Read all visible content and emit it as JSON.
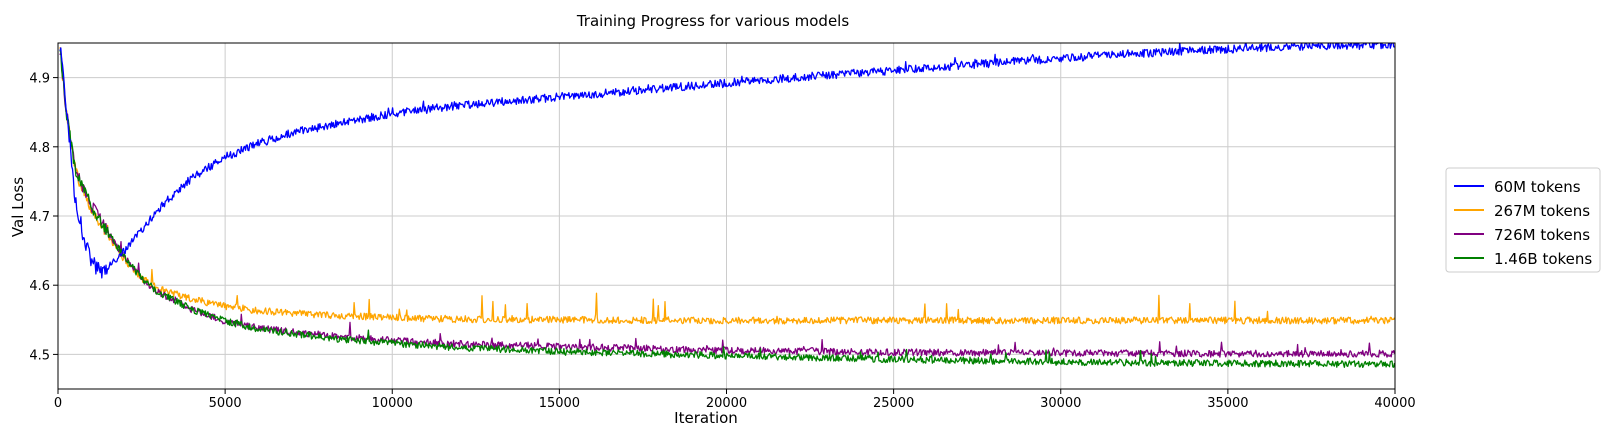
{
  "chart_data": {
    "type": "line",
    "title": "Training Progress for various models",
    "xlabel": "Iteration",
    "ylabel": "Val Loss",
    "xlim": [
      0,
      40000
    ],
    "ylim": [
      4.45,
      4.95
    ],
    "xticks": [
      0,
      5000,
      10000,
      15000,
      20000,
      25000,
      30000,
      35000,
      40000
    ],
    "yticks": [
      4.5,
      4.6,
      4.7,
      4.8,
      4.9
    ],
    "grid": true,
    "legend_position": "right-outside",
    "series": [
      {
        "name": "60M tokens",
        "color": "#0000ff",
        "x": [
          0,
          250,
          500,
          750,
          1000,
          1250,
          1500,
          2000,
          2500,
          3000,
          4000,
          5000,
          6000,
          7000,
          8000,
          10000,
          12000,
          14000,
          16000,
          18000,
          20000,
          22000,
          24000,
          26000,
          28000,
          30000,
          32000,
          34000,
          36000,
          38000,
          40000
        ],
        "y": [
          4.97,
          4.86,
          4.73,
          4.67,
          4.635,
          4.62,
          4.625,
          4.65,
          4.68,
          4.71,
          4.755,
          4.785,
          4.805,
          4.82,
          4.83,
          4.848,
          4.86,
          4.868,
          4.876,
          4.884,
          4.892,
          4.9,
          4.907,
          4.914,
          4.921,
          4.928,
          4.934,
          4.939,
          4.943,
          4.946,
          4.948
        ],
        "noise": 0.006,
        "spike_rate": 0.012,
        "spike_amp": 0.012
      },
      {
        "name": "267M tokens",
        "color": "#ffa500",
        "x": [
          0,
          250,
          500,
          750,
          1000,
          1500,
          2000,
          2500,
          3000,
          4000,
          5000,
          6000,
          8000,
          10000,
          12000,
          15000,
          20000,
          25000,
          30000,
          35000,
          40000
        ],
        "y": [
          4.97,
          4.85,
          4.77,
          4.735,
          4.71,
          4.67,
          4.635,
          4.61,
          4.595,
          4.58,
          4.57,
          4.563,
          4.557,
          4.553,
          4.551,
          4.55,
          4.549,
          4.549,
          4.549,
          4.549,
          4.549
        ],
        "noise": 0.005,
        "spike_rate": 0.025,
        "spike_amp": 0.035
      },
      {
        "name": "726M tokens",
        "color": "#800080",
        "x": [
          0,
          250,
          500,
          750,
          1000,
          1500,
          2000,
          2500,
          3000,
          4000,
          5000,
          6000,
          8000,
          10000,
          12000,
          15000,
          20000,
          25000,
          30000,
          35000,
          40000
        ],
        "y": [
          4.97,
          4.85,
          4.77,
          4.74,
          4.715,
          4.675,
          4.64,
          4.61,
          4.59,
          4.565,
          4.548,
          4.538,
          4.527,
          4.52,
          4.515,
          4.511,
          4.506,
          4.503,
          4.502,
          4.501,
          4.501
        ],
        "noise": 0.005,
        "spike_rate": 0.02,
        "spike_amp": 0.018
      },
      {
        "name": "1.46B tokens",
        "color": "#008000",
        "x": [
          0,
          250,
          500,
          750,
          1000,
          1500,
          2000,
          2500,
          3000,
          4000,
          5000,
          6000,
          8000,
          10000,
          12000,
          15000,
          20000,
          25000,
          30000,
          35000,
          40000
        ],
        "y": [
          4.97,
          4.85,
          4.77,
          4.74,
          4.715,
          4.675,
          4.64,
          4.61,
          4.59,
          4.565,
          4.548,
          4.537,
          4.524,
          4.516,
          4.51,
          4.504,
          4.498,
          4.493,
          4.489,
          4.487,
          4.486
        ],
        "noise": 0.005,
        "spike_rate": 0.015,
        "spike_amp": 0.018
      }
    ]
  }
}
